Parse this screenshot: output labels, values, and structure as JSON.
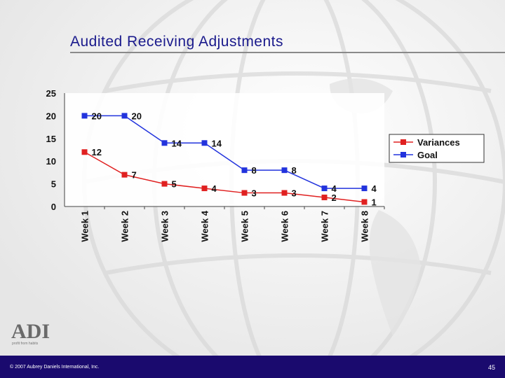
{
  "slide": {
    "title": "Audited Receiving Adjustments",
    "copyright": "© 2007 Aubrey Daniels International, Inc.",
    "page_number": "45",
    "logo_text": "ADI",
    "logo_tagline": "profit from habits"
  },
  "colors": {
    "variances": "#e02020",
    "goal": "#2233dd",
    "title": "#1a1a8c",
    "footer": "#1a0a6e"
  },
  "chart_data": {
    "type": "line",
    "categories": [
      "Week 1",
      "Week 2",
      "Week 3",
      "Week 4",
      "Week 5",
      "Week 6",
      "Week 7",
      "Week 8"
    ],
    "series": [
      {
        "name": "Variances",
        "values": [
          12,
          7,
          5,
          4,
          3,
          3,
          2,
          1
        ],
        "color": "#e02020"
      },
      {
        "name": "Goal",
        "values": [
          20,
          20,
          14,
          14,
          8,
          8,
          4,
          4
        ],
        "color": "#2233dd"
      }
    ],
    "ylim": [
      0,
      25
    ],
    "yticks": [
      "0",
      "5",
      "10",
      "15",
      "20",
      "25"
    ],
    "grid": false,
    "legend": "right"
  }
}
